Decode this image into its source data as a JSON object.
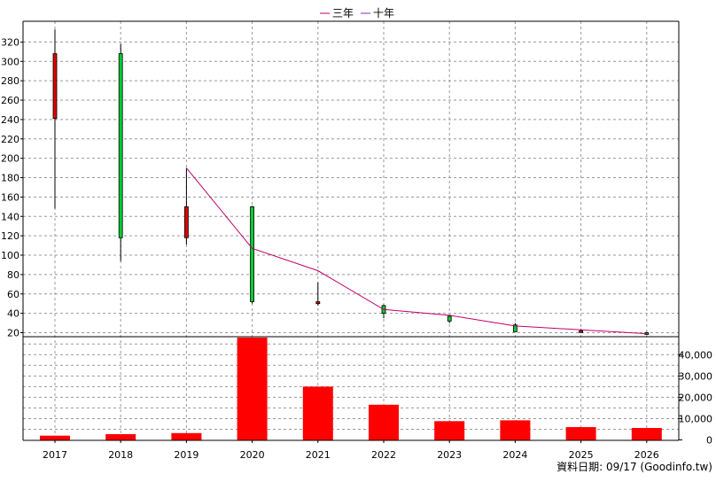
{
  "legend": [
    {
      "label": "三年",
      "color": "#c0006a"
    },
    {
      "label": "十年",
      "color": "#7b2fbf"
    }
  ],
  "footer": "資料日期: 09/17  (Goodinfo.tw)",
  "colors": {
    "up": "#dd0000",
    "down": "#00cc33",
    "volume": "#ff0000",
    "grid": "#999999",
    "frame": "#000000"
  },
  "chart_data": [
    {
      "type": "candlestick",
      "title": "",
      "categories": [
        "2017",
        "2018",
        "2019",
        "2020",
        "2021",
        "2022",
        "2023",
        "2024",
        "2025",
        "2026"
      ],
      "ylim": [
        15,
        335
      ],
      "yticks": [
        20,
        40,
        60,
        80,
        100,
        120,
        140,
        160,
        180,
        200,
        220,
        240,
        260,
        280,
        300,
        320
      ],
      "grid": true,
      "series": [
        {
          "kind": "ohlc",
          "values": [
            {
              "open": 241,
              "high": 333,
              "low": 148,
              "close": 308
            },
            {
              "open": 308,
              "high": 318,
              "low": 94,
              "close": 118
            },
            {
              "open": 118,
              "high": 190,
              "low": 111,
              "close": 150
            },
            {
              "open": 150,
              "high": 151,
              "low": 50,
              "close": 52
            },
            {
              "open": 50,
              "high": 72,
              "low": 48,
              "close": 52
            },
            {
              "open": 48,
              "high": 49,
              "low": 35,
              "close": 40
            },
            {
              "open": 37,
              "high": 38,
              "low": 30,
              "close": 32
            },
            {
              "open": 28,
              "high": 30,
              "low": 21,
              "close": 21
            },
            {
              "open": 22,
              "high": 24,
              "low": 20,
              "close": 22
            },
            {
              "open": 20,
              "high": 21,
              "low": 18,
              "close": 19
            }
          ]
        },
        {
          "kind": "line",
          "name": "三年",
          "color": "#c0006a",
          "values": [
            null,
            null,
            190,
            107,
            84,
            44,
            38,
            27,
            23,
            19
          ]
        }
      ]
    },
    {
      "type": "bar",
      "title": "",
      "categories": [
        "2017",
        "2018",
        "2019",
        "2020",
        "2021",
        "2022",
        "2023",
        "2024",
        "2025",
        "2026"
      ],
      "values": [
        2000,
        2700,
        3200,
        48000,
        25000,
        16500,
        8800,
        9200,
        6000,
        5600
      ],
      "ylim": [
        0,
        48000
      ],
      "yticks": [
        0,
        10000,
        20000,
        30000,
        40000
      ],
      "yticklabels": [
        "0",
        "10,000",
        "20,000",
        "30,000",
        "40,000"
      ],
      "grid": true
    }
  ]
}
